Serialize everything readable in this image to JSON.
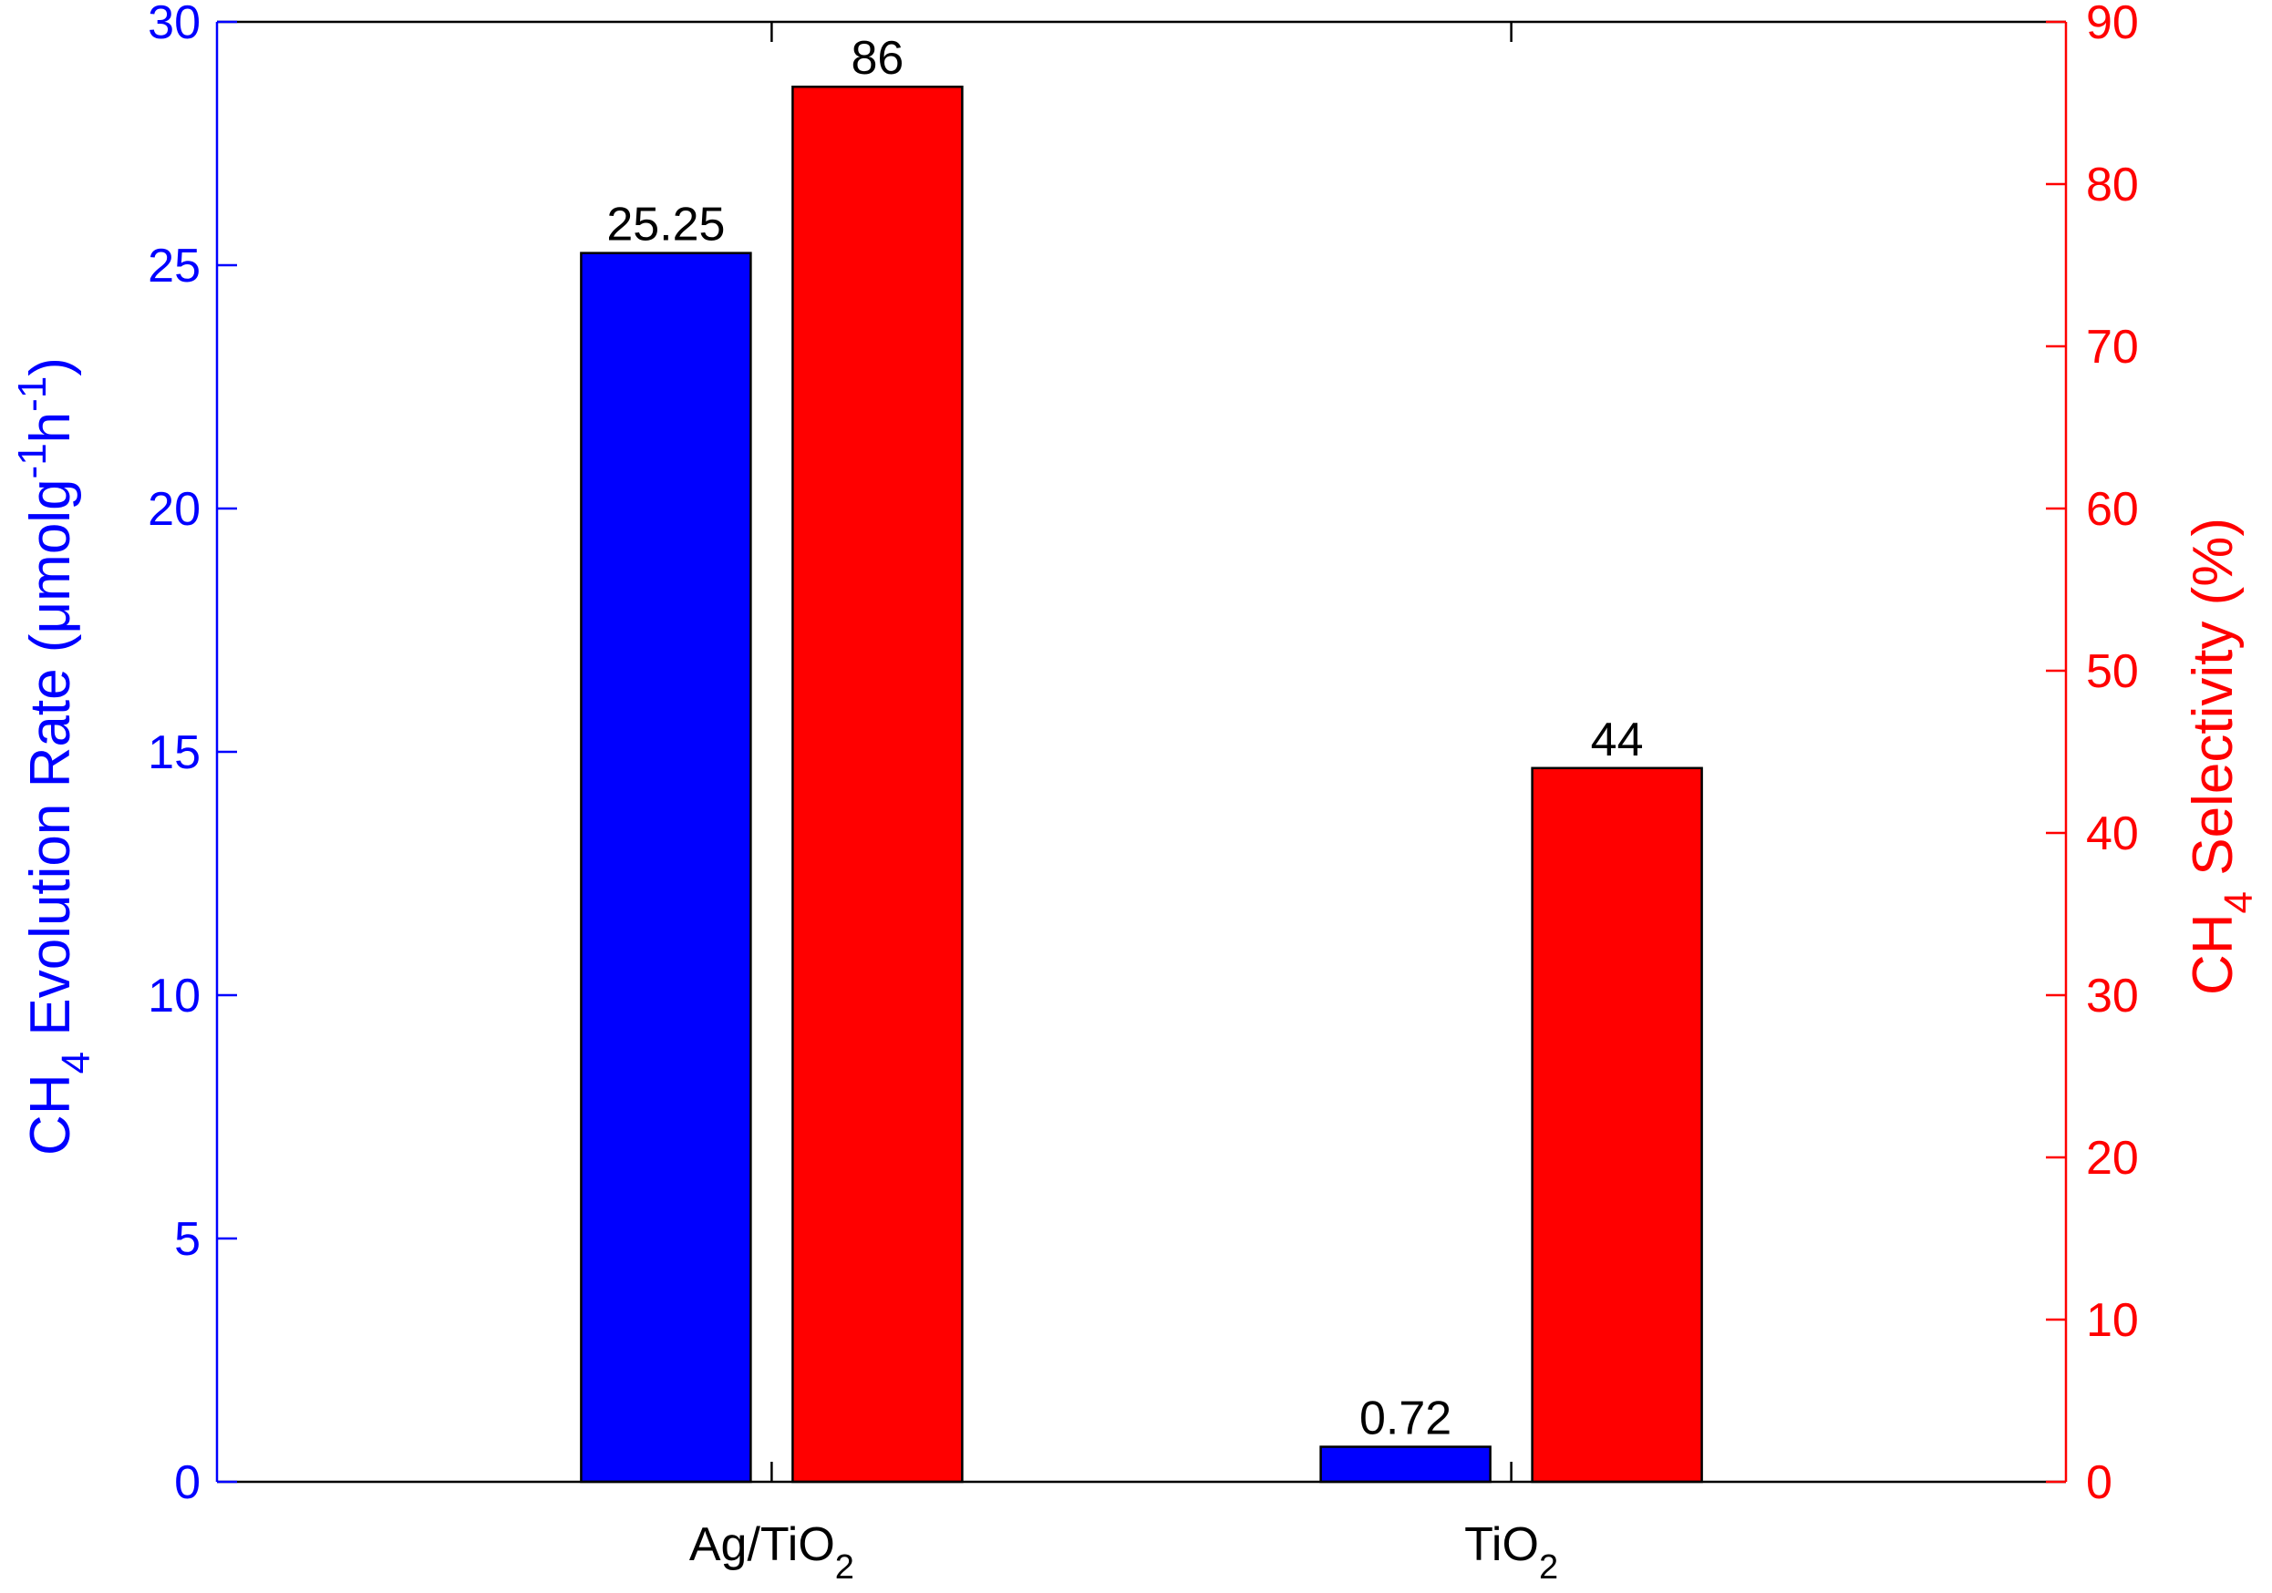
{
  "chart_data": {
    "type": "bar",
    "categories": [
      "Ag/TiO2",
      "TiO2"
    ],
    "category_labels": [
      {
        "base": "Ag/TiO",
        "sub": "2"
      },
      {
        "base": "TiO",
        "sub": "2"
      }
    ],
    "series": [
      {
        "values": [
          25.25,
          0.72
        ],
        "axis": "left",
        "color": "#0000ff"
      },
      {
        "values": [
          86,
          44
        ],
        "axis": "right",
        "color": "#ff0000"
      }
    ],
    "data_labels": [
      [
        "25.25",
        "0.72"
      ],
      [
        "86",
        "44"
      ]
    ],
    "left_axis": {
      "label_pre": "CH",
      "label_sub": "4",
      "label_mid": " Evolution Rate (μmolg",
      "label_sup1": "-1",
      "label_h": "h",
      "label_sup2": "-1",
      "label_end": ")",
      "ylim": [
        0,
        30
      ],
      "ticks": [
        0,
        5,
        10,
        15,
        20,
        25,
        30
      ],
      "color": "#0000ff"
    },
    "right_axis": {
      "label_pre": "CH",
      "label_sub": "4",
      "label_post": " Selectivity (%)",
      "ylim": [
        0,
        90
      ],
      "ticks": [
        0,
        10,
        20,
        30,
        40,
        50,
        60,
        70,
        80,
        90
      ],
      "color": "#ff0000"
    },
    "grid": false,
    "legend": "none"
  }
}
